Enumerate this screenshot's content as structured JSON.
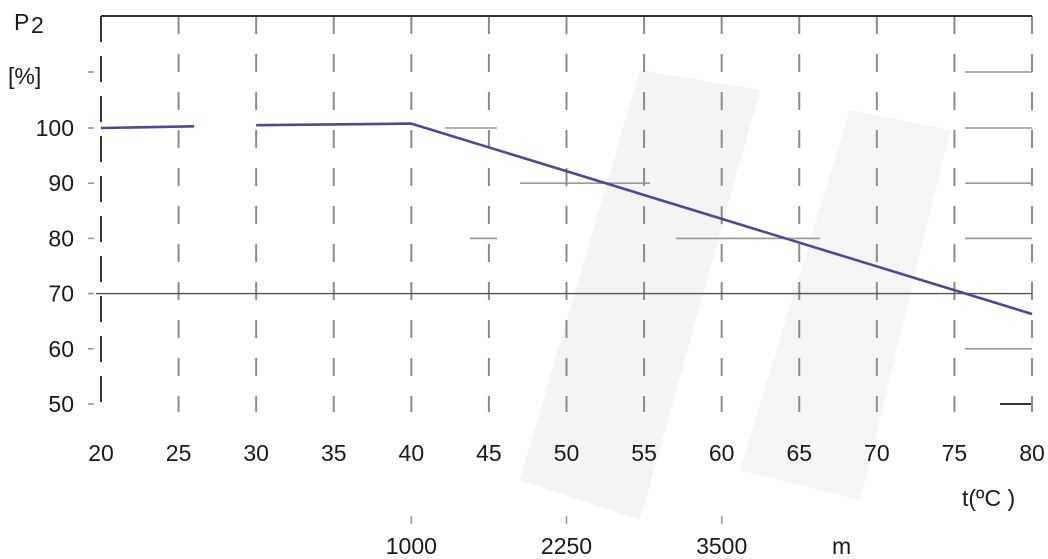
{
  "chart_data": {
    "type": "line",
    "ylabel_symbol": "P",
    "ylabel_subscript": "2",
    "yunit": "[%]",
    "xlabel": "t(ºC )",
    "x_ticks": [
      "20",
      "25",
      "30",
      "35",
      "40",
      "45",
      "50",
      "55",
      "60",
      "65",
      "70",
      "75",
      "80"
    ],
    "y_ticks": [
      "100",
      "90",
      "80",
      "70",
      "60",
      "50"
    ],
    "xlim": [
      20,
      80
    ],
    "ylim": [
      50,
      100
    ],
    "altitude_axis": {
      "ticks": [
        {
          "label": "1000",
          "at_x": 40
        },
        {
          "label": "2250",
          "at_x": 50
        },
        {
          "label": "3500",
          "at_x": 60
        }
      ],
      "unit": "m"
    },
    "series": [
      {
        "color": "#4a4a96",
        "segments": [
          {
            "x": [
              20,
              26
            ],
            "y": [
              100,
              100.3
            ]
          },
          {
            "x": [
              30,
              40,
              80
            ],
            "y": [
              100.5,
              100.8,
              66.3
            ]
          }
        ]
      }
    ],
    "reference_line_y": 70,
    "colors": {
      "series": "#4a4a96",
      "grid": "#8c8c8c",
      "axis": "#333333"
    }
  }
}
